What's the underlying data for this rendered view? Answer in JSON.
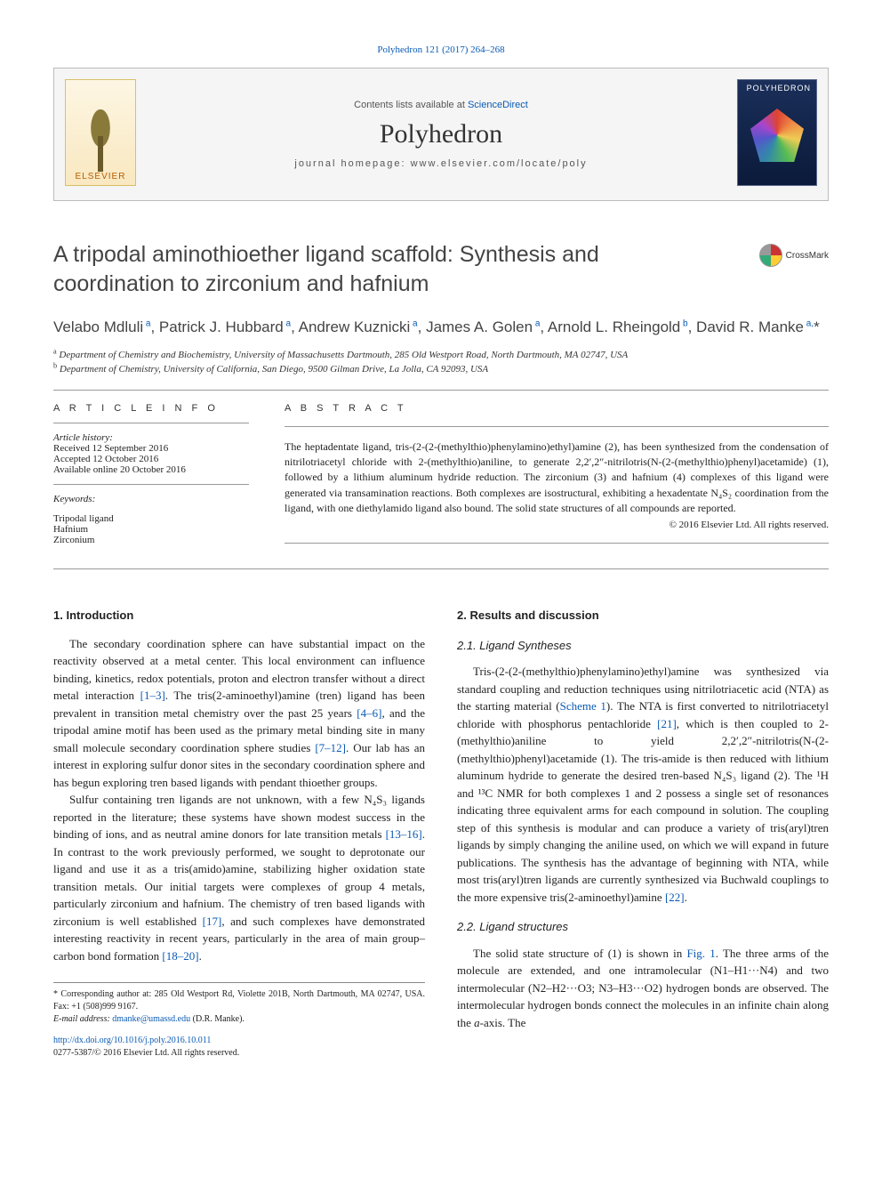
{
  "header": {
    "citation": "Polyhedron 121 (2017) 264–268",
    "contents_pre": "Contents lists available at ",
    "contents_link": "ScienceDirect",
    "journal": "Polyhedron",
    "homepage_pre": "journal homepage: ",
    "homepage": "www.elsevier.com/locate/poly",
    "elsevier": "ELSEVIER",
    "cover_title": "POLYHEDRON"
  },
  "crossmark": "CrossMark",
  "title": "A tripodal aminothioether ligand scaffold: Synthesis and coordination to zirconium and hafnium",
  "authors_html": "Velabo Mdluli<sup> a</sup>, Patrick J. Hubbard<sup> a</sup>, Andrew Kuznicki<sup> a</sup>, James A. Golen<sup> a</sup>, Arnold L. Rheingold<sup> b</sup>, David R. Manke<sup> a,</sup>*",
  "affiliations": [
    {
      "sup": "a",
      "text": "Department of Chemistry and Biochemistry, University of Massachusetts Dartmouth, 285 Old Westport Road, North Dartmouth, MA 02747, USA"
    },
    {
      "sup": "b",
      "text": "Department of Chemistry, University of California, San Diego, 9500 Gilman Drive, La Jolla, CA 92093, USA"
    }
  ],
  "article_info": {
    "label": "A R T I C L E   I N F O",
    "history_label": "Article history:",
    "received": "Received 12 September 2016",
    "accepted": "Accepted 12 October 2016",
    "online": "Available online 20 October 2016",
    "keywords_label": "Keywords:",
    "keywords": [
      "Tripodal ligand",
      "Hafnium",
      "Zirconium"
    ]
  },
  "abstract": {
    "label": "A B S T R A C T",
    "text": "The heptadentate ligand, tris-(2-(2-(methylthio)phenylamino)ethyl)amine (2), has been synthesized from the condensation of nitrilotriacetyl chloride with 2-(methylthio)aniline, to generate 2,2′,2″-nitrilotris(N-(2-(methylthio)phenyl)acetamide) (1), followed by a lithium aluminum hydride reduction. The zirconium (3) and hafnium (4) complexes of this ligand were generated via transamination reactions. Both complexes are isostructural, exhibiting a hexadentate N₄S₂ coordination from the ligand, with one diethylamido ligand also bound. The solid state structures of all compounds are reported.",
    "copyright": "© 2016 Elsevier Ltd. All rights reserved."
  },
  "sections": {
    "intro_h": "1. Introduction",
    "intro_p1": "The secondary coordination sphere can have substantial impact on the reactivity observed at a metal center. This local environment can influence binding, kinetics, redox potentials, proton and electron transfer without a direct metal interaction [1–3]. The tris(2-aminoethyl)amine (tren) ligand has been prevalent in transition metal chemistry over the past 25 years [4–6], and the tripodal amine motif has been used as the primary metal binding site in many small molecule secondary coordination sphere studies [7–12]. Our lab has an interest in exploring sulfur donor sites in the secondary coordination sphere and has begun exploring tren based ligands with pendant thioether groups.",
    "intro_p2": "Sulfur containing tren ligands are not unknown, with a few N₄S₃ ligands reported in the literature; these systems have shown modest success in the binding of ions, and as neutral amine donors for late transition metals [13–16]. In contrast to the work previously performed, we sought to deprotonate our ligand and use it as a tris(amido)amine, stabilizing higher oxidation state transition metals. Our initial targets were complexes of group 4 metals, particularly zirconium and hafnium. The chemistry of tren based ligands with zirconium is well established [17], and such complexes have demonstrated interesting reactivity in recent years, particularly in the area of main group–carbon bond formation [18–20].",
    "results_h": "2. Results and discussion",
    "synth_h": "2.1. Ligand Syntheses",
    "synth_p": "Tris-(2-(2-(methylthio)phenylamino)ethyl)amine was synthesized via standard coupling and reduction techniques using nitrilotriacetic acid (NTA) as the starting material (Scheme 1). The NTA is first converted to nitrilotriacetyl chloride with phosphorus pentachloride [21], which is then coupled to 2-(methylthio)aniline to yield 2,2′,2″-nitrilotris(N-(2-(methylthio)phenyl)acetamide (1). The tris-amide is then reduced with lithium aluminum hydride to generate the desired tren-based N₄S₃ ligand (2). The ¹H and ¹³C NMR for both complexes 1 and 2 possess a single set of resonances indicating three equivalent arms for each compound in solution. The coupling step of this synthesis is modular and can produce a variety of tris(aryl)tren ligands by simply changing the aniline used, on which we will expand in future publications. The synthesis has the advantage of beginning with NTA, while most tris(aryl)tren ligands are currently synthesized via Buchwald couplings to the more expensive tris(2-aminoethyl)amine [22].",
    "struct_h": "2.2. Ligand structures",
    "struct_p": "The solid state structure of (1) is shown in Fig. 1. The three arms of the molecule are extended, and one intramolecular (N1–H1···N4) and two intermolecular (N2–H2···O3; N3–H3···O2) hydrogen bonds are observed. The intermolecular hydrogen bonds connect the molecules in an infinite chain along the a-axis. The"
  },
  "refs": {
    "r1": "[1–3]",
    "r4": "[4–6]",
    "r7": "[7–12]",
    "r13": "[13–16]",
    "r17": "[17]",
    "r18": "[18–20]",
    "r21": "[21]",
    "r22": "[22]",
    "scheme1": "Scheme 1",
    "fig1": "Fig. 1"
  },
  "footnotes": {
    "corr": "* Corresponding author at: 285 Old Westport Rd, Violette 201B, North Dartmouth, MA 02747, USA. Fax: +1 (508)999 9167.",
    "email_label": "E-mail address: ",
    "email": "dmanke@umassd.edu",
    "email_paren": " (D.R. Manke)."
  },
  "doi": {
    "url": "http://dx.doi.org/10.1016/j.poly.2016.10.011",
    "issn": "0277-5387/© 2016 Elsevier Ltd. All rights reserved."
  }
}
